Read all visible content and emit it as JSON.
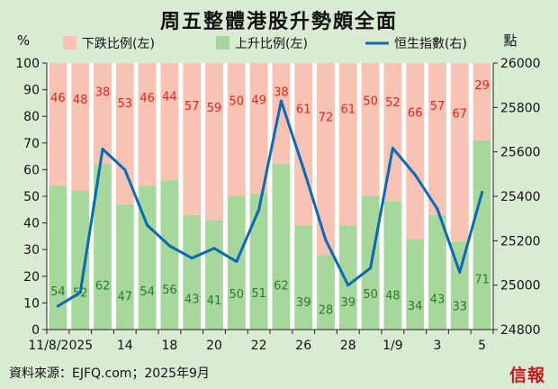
{
  "chart_data": {
    "type": "bar",
    "title": "周五整體港股升勢頗全面",
    "left_unit": "%",
    "right_unit": "點",
    "legend": {
      "placement": "top",
      "items": [
        {
          "name": "下跌比例(左)",
          "color": "#f6c3b5",
          "kind": "box"
        },
        {
          "name": "上升比例(左)",
          "color": "#a7d79c",
          "kind": "box"
        },
        {
          "name": "恒生指數(右)",
          "color": "#0a69b3",
          "kind": "line"
        }
      ]
    },
    "x_tick_labels": [
      "11/8/2025",
      "14",
      "18",
      "20",
      "22",
      "26",
      "28",
      "1/9",
      "3",
      "5"
    ],
    "x_tick_positions": [
      1,
      3,
      5,
      7,
      9,
      11,
      13,
      15,
      17,
      19
    ],
    "left_axis": {
      "min": 0,
      "max": 100,
      "step": 10
    },
    "right_axis": {
      "min": 24800,
      "max": 26000,
      "step": 200
    },
    "series": [
      {
        "name": "下跌比例(左)",
        "axis": "left",
        "color": "#f6c3b5",
        "values": [
          46,
          48,
          38,
          53,
          46,
          44,
          57,
          59,
          50,
          49,
          38,
          61,
          72,
          61,
          50,
          52,
          66,
          57,
          67,
          29
        ]
      },
      {
        "name": "上升比例(左)",
        "axis": "left",
        "color": "#a7d79c",
        "values": [
          54,
          52,
          62,
          47,
          54,
          56,
          43,
          41,
          50,
          51,
          62,
          39,
          28,
          39,
          50,
          48,
          34,
          43,
          33,
          71
        ]
      },
      {
        "name": "恒生指數(右)",
        "axis": "right",
        "color": "#0a69b3",
        "values": [
          24906,
          24967,
          25613,
          25519,
          25270,
          25177,
          25122,
          25166,
          25106,
          25339,
          25829,
          25524,
          25202,
          25000,
          25077,
          25617,
          25497,
          25343,
          25058,
          25418
        ]
      }
    ],
    "down_label_color": "#e0261c",
    "up_label_color": "#2a7a2a",
    "grid": false
  },
  "source": "資料來源：EJFQ.com；2025年9月",
  "logo": "信報"
}
